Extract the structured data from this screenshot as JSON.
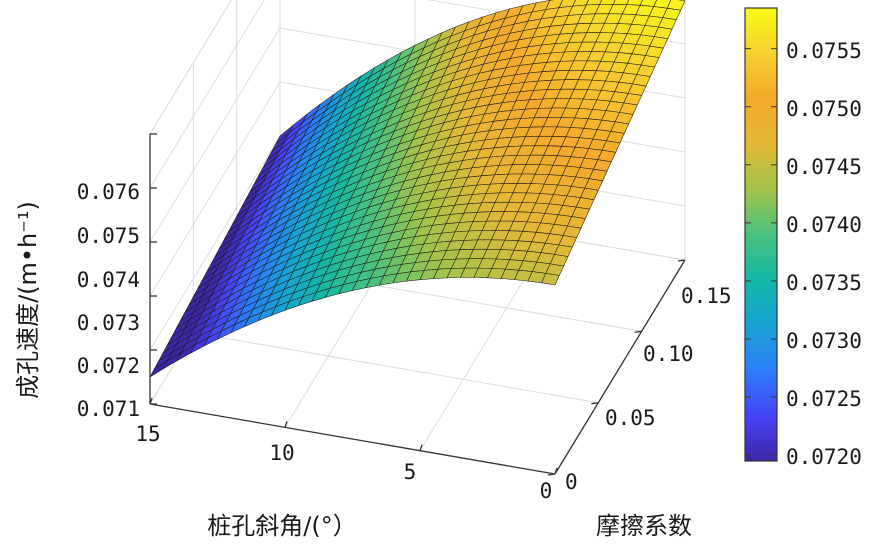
{
  "chart_data": {
    "type": "surface",
    "xlabel": "桩孔斜角/(°）",
    "ylabel": "摩擦系数",
    "zlabel": "成孔速度/(m•h⁻¹)",
    "x_ticks": [
      "15",
      "10",
      "5",
      "0"
    ],
    "y_ticks": [
      "0",
      "0.05",
      "0.10",
      "0.15"
    ],
    "z_ticks": [
      "0.071",
      "0.072",
      "0.073",
      "0.074",
      "0.075",
      "0.076"
    ],
    "xlim": [
      0,
      15
    ],
    "ylim": [
      0,
      0.15
    ],
    "zlim": [
      0.071,
      0.076
    ],
    "colorbar": {
      "ticks": [
        "0.0720",
        "0.0725",
        "0.0730",
        "0.0735",
        "0.0740",
        "0.0745",
        "0.0750",
        "0.0755"
      ],
      "range": [
        0.07195,
        0.07585
      ],
      "colormap": [
        "#3e26a8",
        "#4743f8",
        "#2c7ef8",
        "#16a3d4",
        "#14b7a6",
        "#49c27e",
        "#a2c34a",
        "#e4b935",
        "#f5a92a",
        "#f6d02f",
        "#f9fb15"
      ]
    },
    "surface": {
      "grid_resolution": [
        31,
        31
      ],
      "corner_values": {
        "x15_y0": 0.0715,
        "x15_y015": 0.072,
        "x0_y0": 0.0745,
        "x0_y015": 0.0758
      }
    },
    "grid": true
  }
}
